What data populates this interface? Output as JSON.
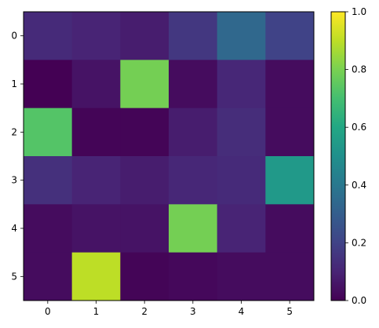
{
  "chart_data": {
    "type": "heatmap",
    "title": "",
    "xlabel": "",
    "ylabel": "",
    "x_categories": [
      "0",
      "1",
      "2",
      "3",
      "4",
      "5"
    ],
    "y_categories": [
      "0",
      "1",
      "2",
      "3",
      "4",
      "5"
    ],
    "values": [
      [
        0.12,
        0.1,
        0.08,
        0.16,
        0.34,
        0.2
      ],
      [
        0.0,
        0.05,
        0.79,
        0.03,
        0.11,
        0.03
      ],
      [
        0.73,
        0.01,
        0.01,
        0.08,
        0.13,
        0.03
      ],
      [
        0.14,
        0.1,
        0.08,
        0.11,
        0.12,
        0.54
      ],
      [
        0.03,
        0.05,
        0.05,
        0.79,
        0.1,
        0.03
      ],
      [
        0.03,
        0.9,
        0.01,
        0.02,
        0.03,
        0.03
      ]
    ],
    "colormap": "viridis",
    "colorbar": {
      "min": 0.0,
      "max": 1.0,
      "ticks": [
        "0.0",
        "0.2",
        "0.4",
        "0.6",
        "0.8",
        "1.0"
      ]
    },
    "grid": false,
    "legend": "colorbar-right"
  }
}
